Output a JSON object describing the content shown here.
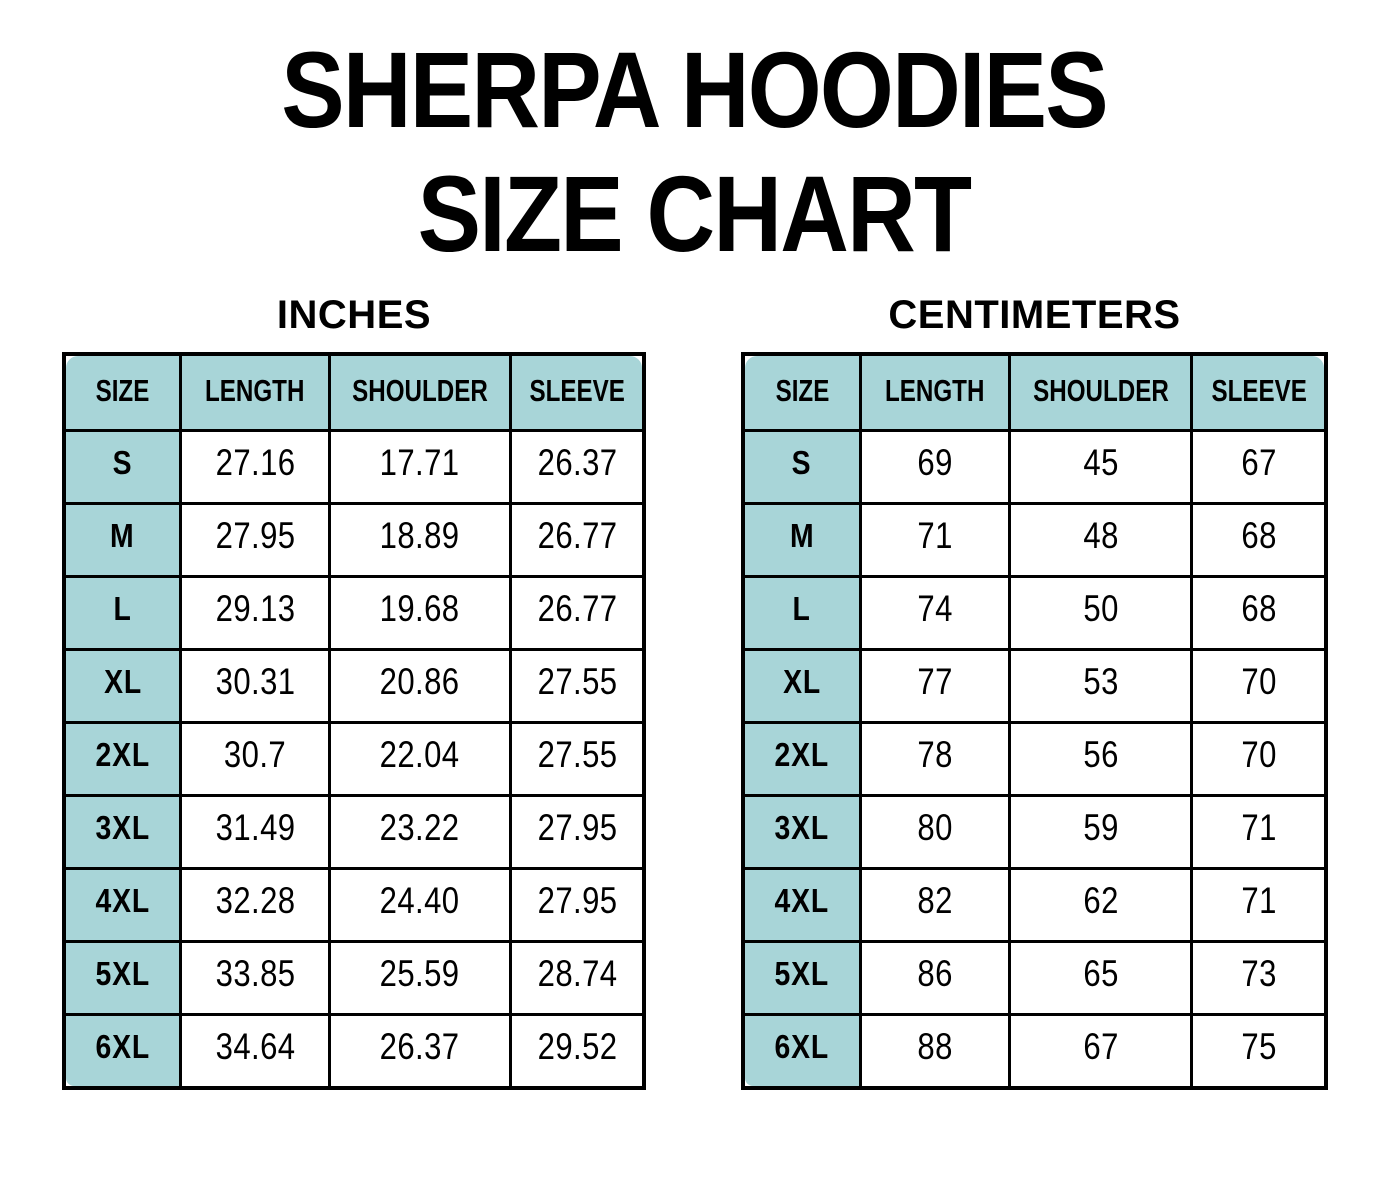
{
  "header": {
    "line1": "SHERPA HOODIES",
    "line2": "SIZE CHART"
  },
  "colors": {
    "header_fill": "#a8d5d8",
    "border": "#000000",
    "text": "#000000"
  },
  "chart_data": [
    {
      "type": "table",
      "title": "INCHES",
      "columns": [
        "SIZE",
        "LENGTH",
        "SHOULDER",
        "SLEEVE"
      ],
      "rows": [
        [
          "S",
          "27.16",
          "17.71",
          "26.37"
        ],
        [
          "M",
          "27.95",
          "18.89",
          "26.77"
        ],
        [
          "L",
          "29.13",
          "19.68",
          "26.77"
        ],
        [
          "XL",
          "30.31",
          "20.86",
          "27.55"
        ],
        [
          "2XL",
          "30.7",
          "22.04",
          "27.55"
        ],
        [
          "3XL",
          "31.49",
          "23.22",
          "27.95"
        ],
        [
          "4XL",
          "32.28",
          "24.40",
          "27.95"
        ],
        [
          "5XL",
          "33.85",
          "25.59",
          "28.74"
        ],
        [
          "6XL",
          "34.64",
          "26.37",
          "29.52"
        ]
      ]
    },
    {
      "type": "table",
      "title": "CENTIMETERS",
      "columns": [
        "SIZE",
        "LENGTH",
        "SHOULDER",
        "SLEEVE"
      ],
      "rows": [
        [
          "S",
          "69",
          "45",
          "67"
        ],
        [
          "M",
          "71",
          "48",
          "68"
        ],
        [
          "L",
          "74",
          "50",
          "68"
        ],
        [
          "XL",
          "77",
          "53",
          "70"
        ],
        [
          "2XL",
          "78",
          "56",
          "70"
        ],
        [
          "3XL",
          "80",
          "59",
          "71"
        ],
        [
          "4XL",
          "82",
          "62",
          "71"
        ],
        [
          "5XL",
          "86",
          "65",
          "73"
        ],
        [
          "6XL",
          "88",
          "67",
          "75"
        ]
      ]
    }
  ]
}
